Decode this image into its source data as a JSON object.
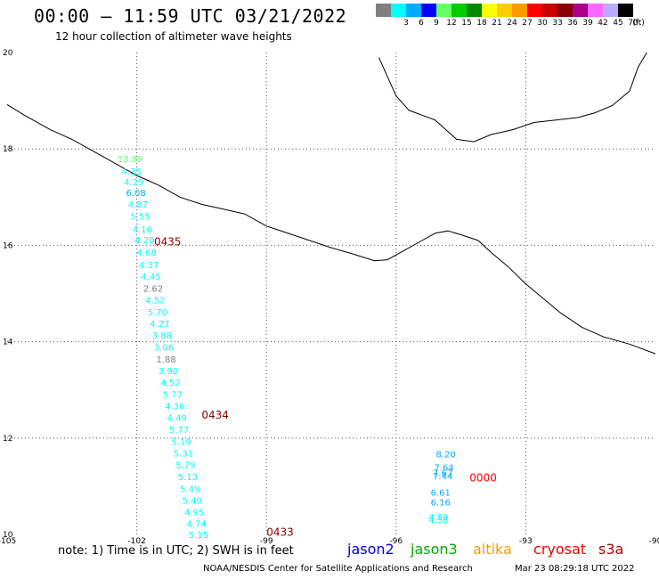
{
  "title": "00:00 – 11:59 UTC 03/21/2022",
  "subtitle": "12 hour collection of altimeter wave heights",
  "legend": {
    "unit": "(ft)",
    "items": [
      {
        "label": "",
        "color": "#808080"
      },
      {
        "label": "3",
        "color": "#00ffff"
      },
      {
        "label": "6",
        "color": "#00aaff"
      },
      {
        "label": "9",
        "color": "#0000ff"
      },
      {
        "label": "12",
        "color": "#66ff66"
      },
      {
        "label": "15",
        "color": "#00cc00"
      },
      {
        "label": "18",
        "color": "#008800"
      },
      {
        "label": "21",
        "color": "#ffff00"
      },
      {
        "label": "24",
        "color": "#ffcc00"
      },
      {
        "label": "27",
        "color": "#ff9900"
      },
      {
        "label": "30",
        "color": "#ff0000"
      },
      {
        "label": "33",
        "color": "#cc0000"
      },
      {
        "label": "36",
        "color": "#880000"
      },
      {
        "label": "39",
        "color": "#aa0088"
      },
      {
        "label": "42",
        "color": "#ff66ff"
      },
      {
        "label": "45",
        "color": "#bbaaff"
      },
      {
        "label": "70",
        "color": "#000000"
      }
    ]
  },
  "axes": {
    "lon_labels": [
      "-105",
      "-102",
      "-99",
      "-96",
      "-93",
      "-90"
    ],
    "lat_labels": [
      "20",
      "18",
      "16",
      "14",
      "12",
      "10"
    ],
    "lon_range": [
      -105,
      -90
    ],
    "lat_range": [
      10,
      20
    ]
  },
  "track1": [
    {
      "value": "13.89",
      "lon": -102.45,
      "lat": 17.73,
      "color": "#66ff66"
    },
    {
      "value": "4.35",
      "lon": -102.35,
      "lat": 17.47,
      "color": "#00ffff"
    },
    {
      "value": "4.29",
      "lon": -102.3,
      "lat": 17.25,
      "color": "#00ffff"
    },
    {
      "value": "6.08",
      "lon": -102.25,
      "lat": 17.02,
      "color": "#00aaff"
    },
    {
      "value": "4.87",
      "lon": -102.2,
      "lat": 16.78,
      "color": "#00ffff"
    },
    {
      "value": "5.55",
      "lon": -102.15,
      "lat": 16.53,
      "color": "#00ffff"
    },
    {
      "value": "4.16",
      "lon": -102.1,
      "lat": 16.27,
      "color": "#00ffff"
    },
    {
      "value": "4.20",
      "lon": -102.05,
      "lat": 16.04,
      "color": "#00ffff"
    },
    {
      "value": "4.68",
      "lon": -102.0,
      "lat": 15.79,
      "color": "#00ffff"
    },
    {
      "value": "4.37",
      "lon": -101.95,
      "lat": 15.53,
      "color": "#00ffff"
    },
    {
      "value": "4.45",
      "lon": -101.9,
      "lat": 15.29,
      "color": "#00ffff"
    },
    {
      "value": "2.62",
      "lon": -101.85,
      "lat": 15.04,
      "color": "#808080"
    },
    {
      "value": "4.52",
      "lon": -101.8,
      "lat": 14.8,
      "color": "#00ffff"
    },
    {
      "value": "5.70",
      "lon": -101.75,
      "lat": 14.55,
      "color": "#00ffff"
    },
    {
      "value": "4.27",
      "lon": -101.7,
      "lat": 14.31,
      "color": "#00ffff"
    },
    {
      "value": "3.88",
      "lon": -101.65,
      "lat": 14.07,
      "color": "#00ffff"
    },
    {
      "value": "3.06",
      "lon": -101.6,
      "lat": 13.82,
      "color": "#00ffff"
    },
    {
      "value": "1.88",
      "lon": -101.55,
      "lat": 13.57,
      "color": "#808080"
    },
    {
      "value": "3.90",
      "lon": -101.5,
      "lat": 13.33,
      "color": "#00ffff"
    },
    {
      "value": "4.52",
      "lon": -101.45,
      "lat": 13.09,
      "color": "#00ffff"
    },
    {
      "value": "5.77",
      "lon": -101.4,
      "lat": 12.84,
      "color": "#00ffff"
    },
    {
      "value": "4.36",
      "lon": -101.35,
      "lat": 12.6,
      "color": "#00ffff"
    },
    {
      "value": "4.49",
      "lon": -101.3,
      "lat": 12.36,
      "color": "#00ffff"
    },
    {
      "value": "5.77",
      "lon": -101.25,
      "lat": 12.11,
      "color": "#00ffff"
    },
    {
      "value": "5.19",
      "lon": -101.2,
      "lat": 11.86,
      "color": "#00ffff"
    },
    {
      "value": "5.31",
      "lon": -101.15,
      "lat": 11.62,
      "color": "#00ffff"
    },
    {
      "value": "5.79",
      "lon": -101.1,
      "lat": 11.38,
      "color": "#00ffff"
    },
    {
      "value": "5.13",
      "lon": -101.05,
      "lat": 11.13,
      "color": "#00ffff"
    },
    {
      "value": "5.49",
      "lon": -101.0,
      "lat": 10.88,
      "color": "#00ffff"
    },
    {
      "value": "5.40",
      "lon": -100.95,
      "lat": 10.64,
      "color": "#00ffff"
    },
    {
      "value": "4.95",
      "lon": -100.9,
      "lat": 10.4,
      "color": "#00ffff"
    },
    {
      "value": "4.74",
      "lon": -100.85,
      "lat": 10.16,
      "color": "#00ffff"
    },
    {
      "value": "5.15",
      "lon": -100.8,
      "lat": 9.93,
      "color": "#00ffff"
    }
  ],
  "track2": [
    {
      "value": "8.20",
      "lon": -95.08,
      "lat": 11.6,
      "color": "#00aaff"
    },
    {
      "value": "7.64",
      "lon": -95.12,
      "lat": 11.32,
      "color": "#00aaff"
    },
    {
      "value": "7.67",
      "lon": -95.15,
      "lat": 11.21,
      "color": "#00aaff"
    },
    {
      "value": "7.44",
      "lon": -95.15,
      "lat": 11.15,
      "color": "#00aaff"
    },
    {
      "value": "6.61",
      "lon": -95.2,
      "lat": 10.8,
      "color": "#00aaff"
    },
    {
      "value": "6.16",
      "lon": -95.2,
      "lat": 10.6,
      "color": "#00aaff"
    },
    {
      "value": "4.89",
      "lon": -95.25,
      "lat": 10.3,
      "color": "#00ffff"
    },
    {
      "value": "4.38",
      "lon": -95.25,
      "lat": 10.24,
      "color": "#00ffff"
    }
  ],
  "times": [
    {
      "text": "0435",
      "lon": -101.6,
      "lat": 16.0,
      "color": "#880000"
    },
    {
      "text": "0434",
      "lon": -100.5,
      "lat": 12.4,
      "color": "#880000"
    },
    {
      "text": "0433",
      "lon": -99.0,
      "lat": 9.97,
      "color": "#880000"
    },
    {
      "text": "0000",
      "lon": -94.3,
      "lat": 11.1,
      "color": "#ff0000"
    }
  ],
  "footer": {
    "note": "note: 1) Time is in UTC; 2) SWH is in feet",
    "satellites": [
      {
        "name": "jason2",
        "color": "#0000dd"
      },
      {
        "name": "jason3",
        "color": "#00aa00"
      },
      {
        "name": "altika",
        "color": "#ff9900"
      },
      {
        "name": "cryosat",
        "color": "#ee0000"
      },
      {
        "name": "s3a",
        "color": "#aa0000"
      }
    ],
    "credit": "NOAA/NESDIS Center for Satellite Applications and Research",
    "timestamp": "Mar 23 08:29:18 UTC 2022"
  },
  "colors": {
    "grid": "#555555",
    "coast": "#000000"
  }
}
